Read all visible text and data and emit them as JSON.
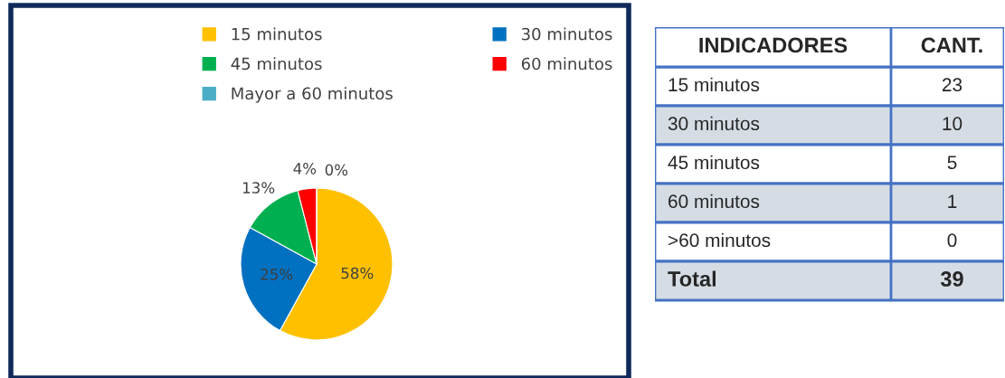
{
  "chart_data": [
    {
      "type": "pie",
      "categories": [
        "15 minutos",
        "30 minutos",
        "45 minutos",
        "60 minutos",
        "Mayor a 60 minutos"
      ],
      "values": [
        58,
        25,
        13,
        4,
        0
      ],
      "value_labels": [
        "58%",
        "25%",
        "13%",
        "4%",
        "0%"
      ],
      "colors": [
        "#ffc000",
        "#0070c0",
        "#00b050",
        "#ff0000",
        "#4bacc6"
      ],
      "legend": "top"
    },
    {
      "type": "other",
      "annotations": [
        "INDICADORES",
        "CANT."
      ],
      "categories": [
        "15 minutos",
        "30 minutos",
        "45 minutos",
        "60 minutos",
        ">60 minutos",
        "Total"
      ],
      "values": [
        23,
        10,
        5,
        1,
        0,
        39
      ],
      "data_labels": true
    }
  ]
}
